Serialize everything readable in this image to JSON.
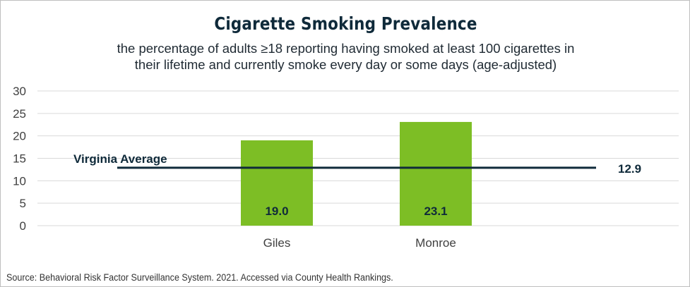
{
  "chart_data": {
    "type": "bar",
    "title": "Cigarette Smoking Prevalence",
    "subtitle_lines": [
      "the percentage of adults ≥18 reporting having smoked at least 100 cigarettes in",
      "their lifetime and currently smoke every day or some days (age-adjusted)"
    ],
    "categories": [
      "Giles",
      "Monroe"
    ],
    "values": [
      19.0,
      23.1
    ],
    "value_labels": [
      "19.0",
      "23.1"
    ],
    "ylim": [
      0,
      30
    ],
    "yticks": [
      "0",
      "5",
      "10",
      "15",
      "20",
      "25",
      "30"
    ],
    "grid": true,
    "xlabel": "",
    "ylabel": "",
    "reference_line": {
      "label": "Virginia Average",
      "value": 12.9,
      "value_label": "12.9"
    },
    "bar_color": "#7dbe25",
    "line_color": "#0f2a3a",
    "source": "Source:  Behavioral Risk Factor Surveillance System. 2021. Accessed via County Health Rankings."
  }
}
